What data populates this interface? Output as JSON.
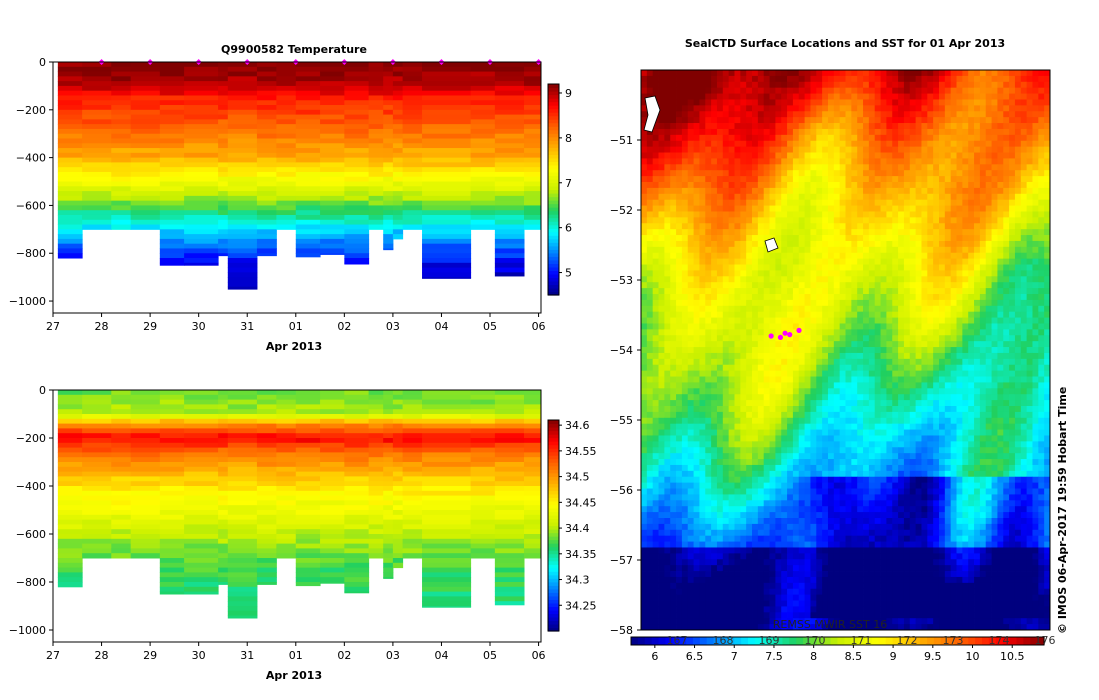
{
  "colors": {
    "jet": [
      "#00007f",
      "#0000ff",
      "#0080ff",
      "#00ffff",
      "#20d060",
      "#c8f000",
      "#ffff00",
      "#ffb000",
      "#ff6000",
      "#ff0000",
      "#800000"
    ],
    "marker": "#ff00ff",
    "frame": "#000000"
  },
  "credit": "© IMOS 06-Apr-2017 19:59 Hobart Time",
  "chart_data": [
    {
      "type": "heatmap",
      "id": "temperature",
      "title": "Q9900582  Temperature",
      "xlabel": "Apr 2013",
      "x_ticks": [
        "27",
        "28",
        "29",
        "30",
        "31",
        "01",
        "02",
        "03",
        "04",
        "05",
        "06"
      ],
      "x_tick_days": [
        0,
        1,
        2,
        3,
        4,
        5,
        6,
        7,
        8,
        9,
        10
      ],
      "xlim": [
        0,
        10.05
      ],
      "ylim": [
        -1050,
        0
      ],
      "y_ticks": [
        0,
        -200,
        -400,
        -600,
        -800,
        -1000
      ],
      "profile_days": [
        0.3,
        1.0,
        2.0,
        3.0,
        4.0,
        5.0,
        6.0,
        7.0,
        7.3,
        8.0,
        9.0,
        10.0
      ],
      "surface_markers": [
        1.0,
        2.0,
        3.0,
        4.0,
        5.0,
        6.0,
        7.0,
        8.0,
        9.0,
        10.0
      ],
      "profiles": [
        {
          "x0": 0.1,
          "x1": 0.6,
          "maxdepth": 820
        },
        {
          "x0": 0.6,
          "x1": 1.2,
          "maxdepth": 700
        },
        {
          "x0": 1.2,
          "x1": 1.6,
          "maxdepth": 700
        },
        {
          "x0": 1.6,
          "x1": 2.2,
          "maxdepth": 700
        },
        {
          "x0": 2.2,
          "x1": 2.7,
          "maxdepth": 850
        },
        {
          "x0": 2.7,
          "x1": 3.4,
          "maxdepth": 850
        },
        {
          "x0": 3.4,
          "x1": 3.6,
          "maxdepth": 810
        },
        {
          "x0": 3.6,
          "x1": 4.2,
          "maxdepth": 950
        },
        {
          "x0": 4.2,
          "x1": 4.6,
          "maxdepth": 810
        },
        {
          "x0": 4.6,
          "x1": 5.0,
          "maxdepth": 700
        },
        {
          "x0": 5.0,
          "x1": 5.5,
          "maxdepth": 815
        },
        {
          "x0": 5.5,
          "x1": 6.0,
          "maxdepth": 805
        },
        {
          "x0": 6.0,
          "x1": 6.5,
          "maxdepth": 845
        },
        {
          "x0": 6.5,
          "x1": 6.8,
          "maxdepth": 700
        },
        {
          "x0": 6.8,
          "x1": 7.0,
          "maxdepth": 785
        },
        {
          "x0": 7.0,
          "x1": 7.2,
          "maxdepth": 740
        },
        {
          "x0": 7.2,
          "x1": 7.6,
          "maxdepth": 700
        },
        {
          "x0": 7.6,
          "x1": 8.6,
          "maxdepth": 905
        },
        {
          "x0": 8.6,
          "x1": 9.1,
          "maxdepth": 700
        },
        {
          "x0": 9.1,
          "x1": 9.7,
          "maxdepth": 895
        },
        {
          "x0": 9.7,
          "x1": 10.05,
          "maxdepth": 700
        }
      ],
      "depth_profile": [
        {
          "depth": 0,
          "value": 9.2
        },
        {
          "depth": 100,
          "value": 9.0
        },
        {
          "depth": 150,
          "value": 8.6
        },
        {
          "depth": 250,
          "value": 8.3
        },
        {
          "depth": 400,
          "value": 7.8
        },
        {
          "depth": 500,
          "value": 7.2
        },
        {
          "depth": 580,
          "value": 6.7
        },
        {
          "depth": 630,
          "value": 6.3
        },
        {
          "depth": 700,
          "value": 5.8
        },
        {
          "depth": 780,
          "value": 5.3
        },
        {
          "depth": 850,
          "value": 4.9
        },
        {
          "depth": 950,
          "value": 4.6
        }
      ],
      "colorbar": {
        "min": 4.5,
        "max": 9.2,
        "ticks": [
          9,
          8,
          7,
          6,
          5
        ],
        "labels": [
          "9",
          "8",
          "7",
          "6",
          "5"
        ]
      }
    },
    {
      "type": "heatmap",
      "id": "salinity",
      "title": "",
      "xlabel": "Apr 2013",
      "x_ticks": [
        "27",
        "28",
        "29",
        "30",
        "31",
        "01",
        "02",
        "03",
        "04",
        "05",
        "06"
      ],
      "x_tick_days": [
        0,
        1,
        2,
        3,
        4,
        5,
        6,
        7,
        8,
        9,
        10
      ],
      "xlim": [
        0,
        10.05
      ],
      "ylim": [
        -1050,
        0
      ],
      "y_ticks": [
        0,
        -200,
        -400,
        -600,
        -800,
        -1000
      ],
      "depth_profile": [
        {
          "depth": 0,
          "value": 34.38
        },
        {
          "depth": 100,
          "value": 34.4
        },
        {
          "depth": 140,
          "value": 34.5
        },
        {
          "depth": 200,
          "value": 34.57
        },
        {
          "depth": 260,
          "value": 34.52
        },
        {
          "depth": 400,
          "value": 34.46
        },
        {
          "depth": 550,
          "value": 34.42
        },
        {
          "depth": 650,
          "value": 34.39
        },
        {
          "depth": 750,
          "value": 34.37
        },
        {
          "depth": 950,
          "value": 34.35
        }
      ],
      "colorbar": {
        "min": 34.2,
        "max": 34.61,
        "ticks": [
          34.6,
          34.55,
          34.5,
          34.45,
          34.4,
          34.35,
          34.3,
          34.25
        ],
        "labels": [
          "34.6",
          "34.55",
          "34.5",
          "34.45",
          "34.4",
          "34.35",
          "34.3",
          "34.25"
        ]
      }
    },
    {
      "type": "heatmap",
      "id": "sst_map",
      "title": "SealCTD Surface Locations and SST for 01 Apr 2013",
      "y_ticks": [
        -51,
        -52,
        -53,
        -54,
        -55,
        -56,
        -57,
        -58
      ],
      "ylim": [
        -58,
        -50
      ],
      "sst_label": "REMSS MWIR SST 16",
      "colorbar": {
        "min": 5.7,
        "max": 10.9,
        "ticks": [
          6,
          6.5,
          7,
          7.5,
          8,
          8.5,
          9,
          9.5,
          10,
          10.5
        ],
        "labels": [
          "6",
          "6.5",
          "7",
          "7.5",
          "8",
          "8.5",
          "9",
          "9.5",
          "10",
          "10.5"
        ],
        "longitude_labels": [
          "167",
          "168",
          "169",
          "170",
          "171",
          "172",
          "173",
          "174",
          "176"
        ]
      },
      "track_points": [
        [
          -53.8,
          168.9
        ],
        [
          -53.82,
          169.0
        ],
        [
          -53.78,
          169.1
        ],
        [
          -53.72,
          169.2
        ],
        [
          -53.76,
          169.05
        ]
      ]
    }
  ]
}
